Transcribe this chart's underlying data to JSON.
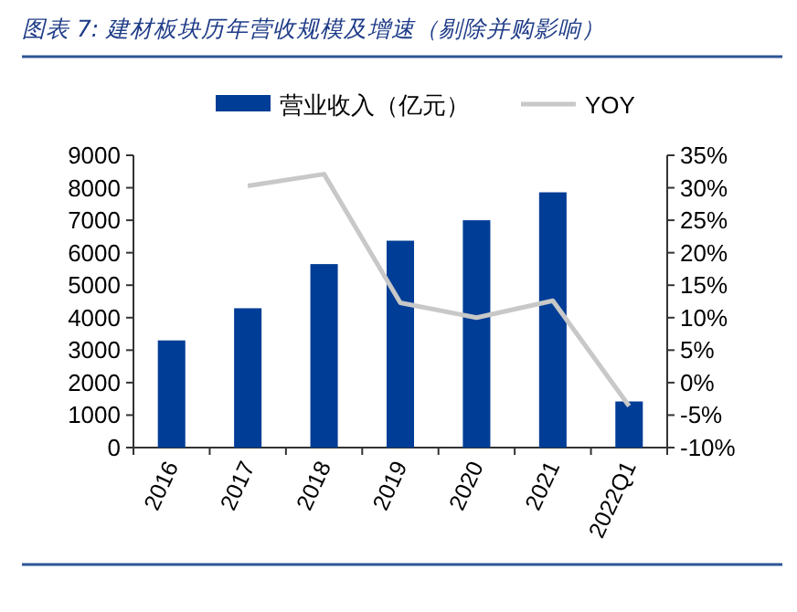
{
  "chart_data": {
    "type": "bar",
    "title": "图表 7:  建材板块历年营收规模及增速（剔除并购影响）",
    "categories": [
      "2016",
      "2017",
      "2018",
      "2019",
      "2020",
      "2021",
      "2022Q1"
    ],
    "series": [
      {
        "name": "营业收入（亿元）",
        "color": "#003d96",
        "values": [
          3300,
          4290,
          5650,
          6370,
          7000,
          7860,
          1420
        ]
      },
      {
        "name": "YOY",
        "type": "line",
        "axis": "y2",
        "color": "#c8c8c8",
        "values": [
          null,
          30.3,
          32.1,
          12.3,
          10.0,
          12.6,
          -3.6
        ]
      }
    ],
    "ylim": [
      0,
      9000
    ],
    "yticks": [
      0,
      1000,
      2000,
      3000,
      4000,
      5000,
      6000,
      7000,
      8000,
      9000
    ],
    "y2lim": [
      -10,
      35
    ],
    "y2ticks": [
      {
        "value": -10,
        "label": "-10%"
      },
      {
        "value": -5,
        "label": "-5%"
      },
      {
        "value": 0,
        "label": "0%"
      },
      {
        "value": 5,
        "label": "5%"
      },
      {
        "value": 10,
        "label": "10%"
      },
      {
        "value": 15,
        "label": "15%"
      },
      {
        "value": 20,
        "label": "20%"
      },
      {
        "value": 25,
        "label": "25%"
      },
      {
        "value": 30,
        "label": "30%"
      },
      {
        "value": 35,
        "label": "35%"
      }
    ],
    "grid": false,
    "legend": "top",
    "marker": "none",
    "line_style": "solid"
  }
}
